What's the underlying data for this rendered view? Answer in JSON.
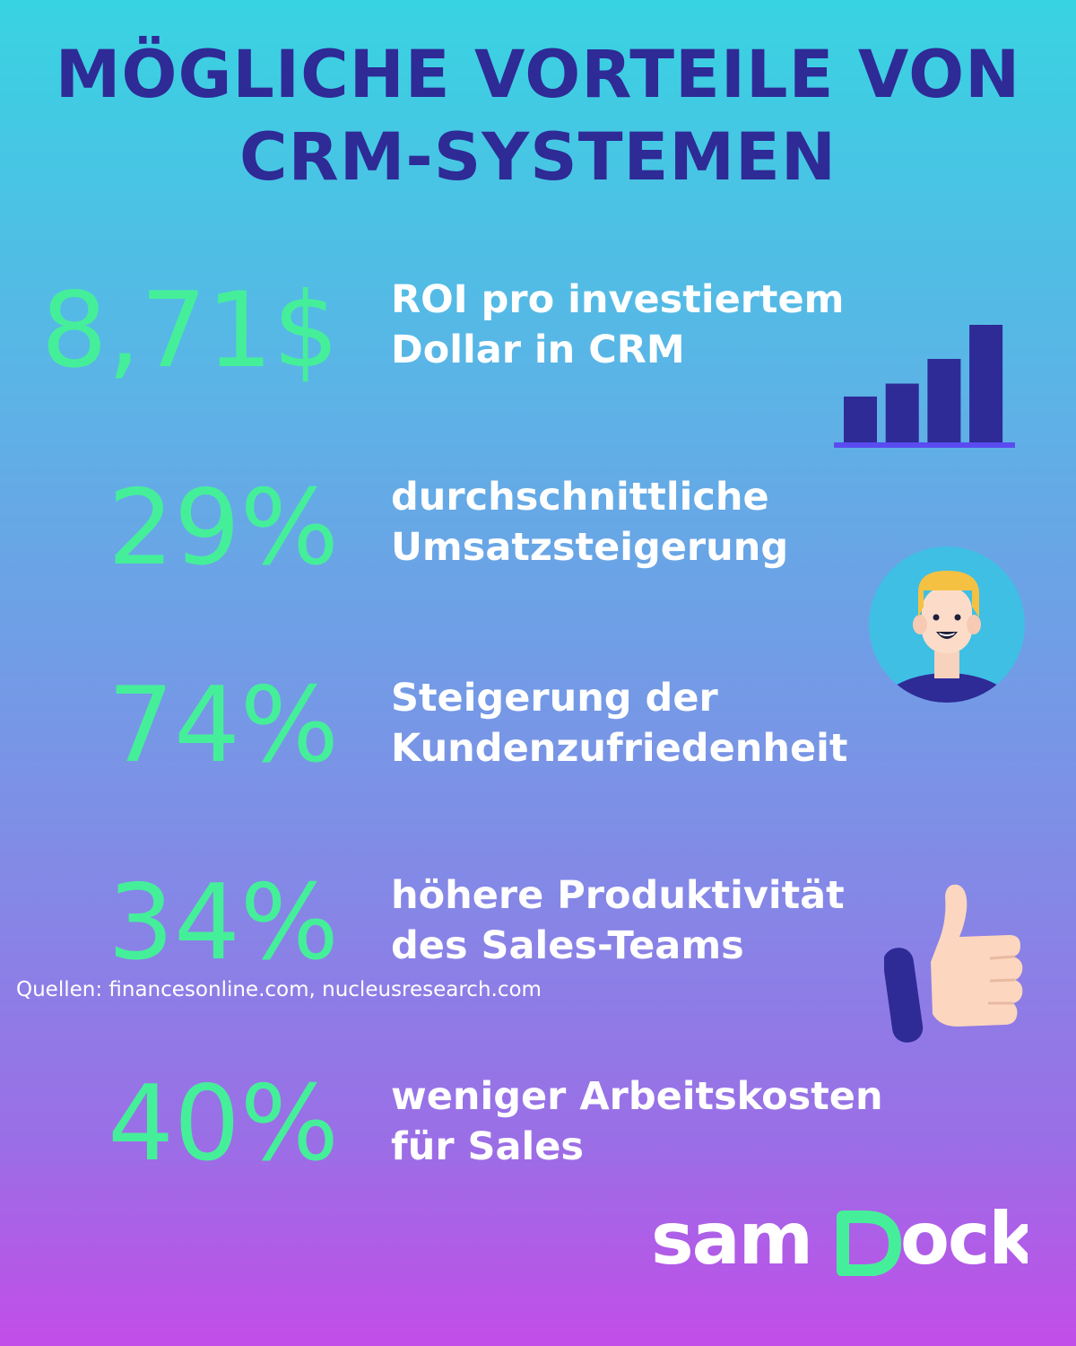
{
  "title": {
    "line1": "MÖGLICHE VORTEILE VON",
    "line2": "CRM-SYSTEMEN"
  },
  "stats": [
    {
      "value": "8,71$",
      "desc_line1": "ROI pro investiertem",
      "desc_line2": "Dollar in CRM",
      "icon": "bar-chart-icon"
    },
    {
      "value": "29%",
      "desc_line1": "durchschnittliche",
      "desc_line2": "Umsatzsteigerung",
      "icon": "customer-avatar-icon"
    },
    {
      "value": "74%",
      "desc_line1": "Steigerung der",
      "desc_line2": "Kundenzufriedenheit",
      "icon": ""
    },
    {
      "value": "34%",
      "desc_line1": "höhere Produktivität",
      "desc_line2": "des Sales-Teams",
      "icon": "thumbs-up-icon"
    },
    {
      "value": "40%",
      "desc_line1": "weniger Arbeitskosten",
      "desc_line2": "für Sales",
      "icon": ""
    }
  ],
  "bar_chart_levels": [
    0.39,
    0.5,
    0.71,
    1.0
  ],
  "sources": "Quellen:  financesonline.com, nucleusresearch.com",
  "logo": "samdock",
  "colors": {
    "title": "#2e2a96",
    "stat_value": "#45ef9a",
    "description": "#ffffff",
    "icon_dark": "#2e2a96",
    "logo_accent": "#45ef9a"
  }
}
